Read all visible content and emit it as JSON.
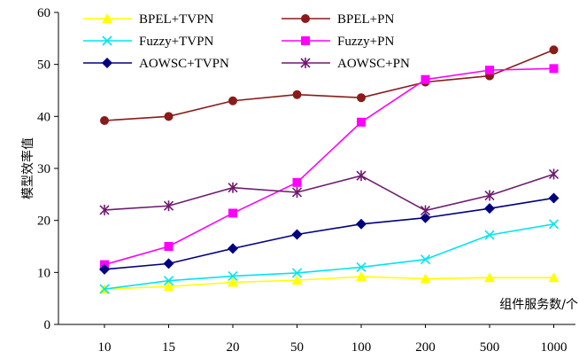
{
  "chart_data": {
    "type": "line",
    "title": "",
    "xlabel": "组件服务数/个",
    "ylabel": "模型效率值",
    "categories": [
      "10",
      "15",
      "20",
      "50",
      "100",
      "200",
      "500",
      "1000"
    ],
    "ylim": [
      0,
      60
    ],
    "yticks": [
      0,
      10,
      20,
      30,
      40,
      50,
      60
    ],
    "grid": false,
    "legend_position": "top-left",
    "series": [
      {
        "name": "BPEL+TVPN",
        "color": "#ffff00",
        "marker": "triangle",
        "values": [
          6.8,
          7.3,
          8.1,
          8.5,
          9.2,
          8.8,
          9.0,
          9.0
        ]
      },
      {
        "name": "BPEL+PN",
        "color": "#8b1a1a",
        "marker": "circle",
        "values": [
          39.2,
          40.0,
          43.0,
          44.2,
          43.6,
          46.6,
          47.8,
          52.8
        ]
      },
      {
        "name": "Fuzzy+TVPN",
        "color": "#00e5ee",
        "marker": "x",
        "values": [
          6.8,
          8.4,
          9.3,
          9.9,
          11.0,
          12.5,
          17.2,
          19.3
        ]
      },
      {
        "name": "Fuzzy+PN",
        "color": "#ff00ff",
        "marker": "square",
        "values": [
          11.5,
          15.0,
          21.4,
          27.3,
          38.9,
          47.1,
          48.9,
          49.2
        ]
      },
      {
        "name": "AOWSC+TVPN",
        "color": "#000080",
        "marker": "diamond",
        "values": [
          10.6,
          11.7,
          14.6,
          17.3,
          19.3,
          20.5,
          22.3,
          24.3
        ]
      },
      {
        "name": "AOWSC+PN",
        "color": "#6e1a6e",
        "marker": "star",
        "values": [
          22.0,
          22.8,
          26.3,
          25.4,
          28.6,
          21.9,
          24.8,
          28.9
        ]
      }
    ]
  }
}
